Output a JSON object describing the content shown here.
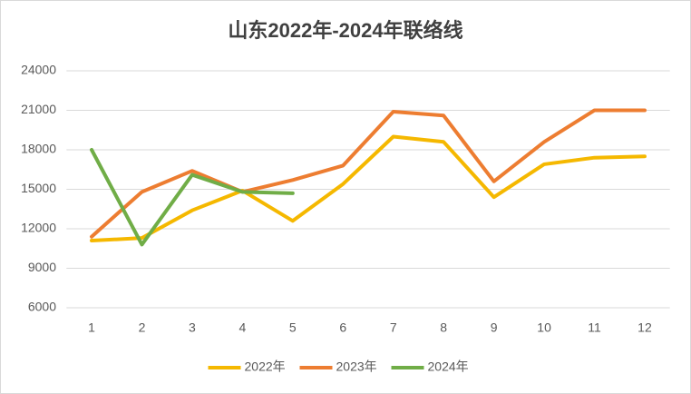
{
  "chart_data": {
    "type": "line",
    "title": "山东2022年-2024年联络线",
    "categories": [
      "1",
      "2",
      "3",
      "4",
      "5",
      "6",
      "7",
      "8",
      "9",
      "10",
      "11",
      "12"
    ],
    "series": [
      {
        "name": "2022年",
        "color": "#f5b800",
        "values": [
          11100,
          11300,
          13400,
          14900,
          12600,
          15400,
          19000,
          18600,
          14400,
          16900,
          17400,
          17500
        ]
      },
      {
        "name": "2023年",
        "color": "#ed7d31",
        "values": [
          11400,
          14800,
          16400,
          14800,
          15700,
          16800,
          20900,
          20600,
          15600,
          18600,
          21000,
          21000
        ]
      },
      {
        "name": "2024年",
        "color": "#70ad47",
        "values": [
          18000,
          10800,
          16100,
          14800,
          14700,
          null,
          null,
          null,
          null,
          null,
          null,
          null
        ]
      }
    ],
    "ylim": [
      6000,
      24000
    ],
    "yticks": [
      6000,
      9000,
      12000,
      15000,
      18000,
      21000,
      24000
    ],
    "grid": true,
    "legend": "bottom"
  }
}
